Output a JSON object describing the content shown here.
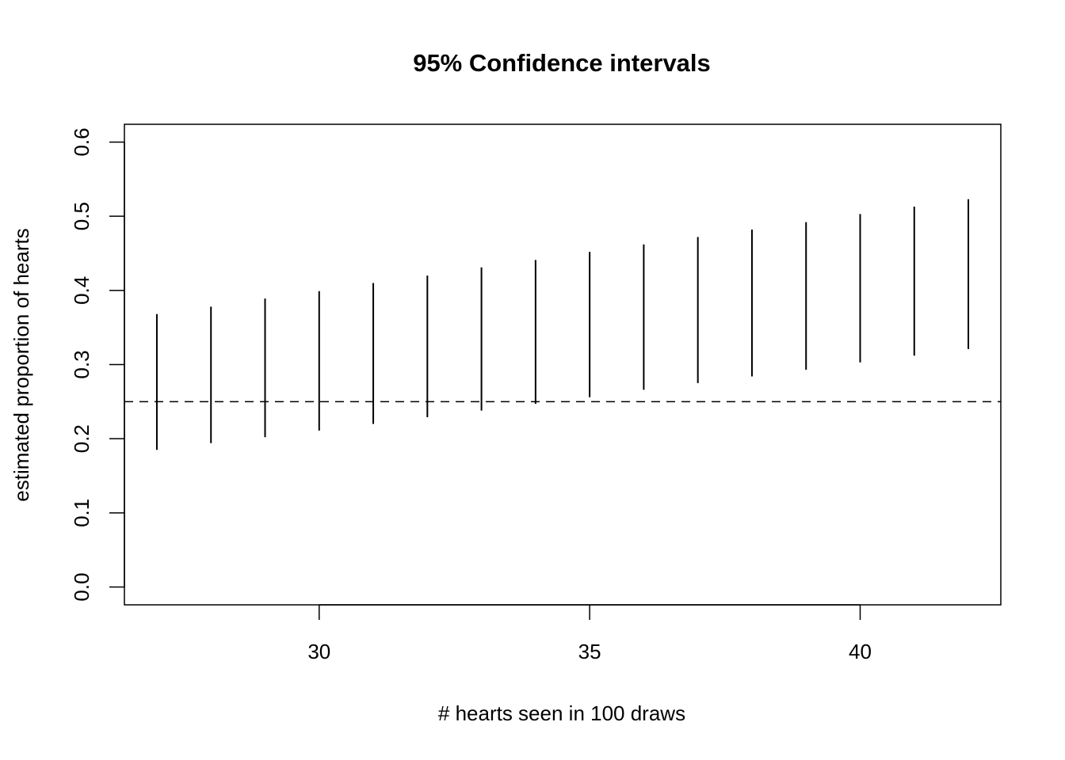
{
  "chart_data": {
    "type": "errorbar",
    "title": "95% Confidence intervals",
    "xlabel": "# hearts seen in 100 draws",
    "ylabel": "estimated proportion of hearts",
    "xlim": [
      26.4,
      42.6
    ],
    "ylim": [
      -0.024,
      0.624
    ],
    "x_ticks": [
      30,
      35,
      40
    ],
    "y_ticks": [
      0.0,
      0.1,
      0.2,
      0.3,
      0.4,
      0.5,
      0.6
    ],
    "x_tick_labels": [
      "30",
      "35",
      "40"
    ],
    "y_tick_labels": [
      "0.0",
      "0.1",
      "0.2",
      "0.3",
      "0.4",
      "0.5",
      "0.6"
    ],
    "reference_line": {
      "y": 0.25,
      "style": "dashed"
    },
    "intervals": [
      {
        "x": 27,
        "lower": 0.185,
        "upper": 0.368
      },
      {
        "x": 28,
        "lower": 0.194,
        "upper": 0.378
      },
      {
        "x": 29,
        "lower": 0.202,
        "upper": 0.389
      },
      {
        "x": 30,
        "lower": 0.211,
        "upper": 0.399
      },
      {
        "x": 31,
        "lower": 0.22,
        "upper": 0.41
      },
      {
        "x": 32,
        "lower": 0.229,
        "upper": 0.42
      },
      {
        "x": 33,
        "lower": 0.238,
        "upper": 0.431
      },
      {
        "x": 34,
        "lower": 0.247,
        "upper": 0.441
      },
      {
        "x": 35,
        "lower": 0.256,
        "upper": 0.452
      },
      {
        "x": 36,
        "lower": 0.266,
        "upper": 0.462
      },
      {
        "x": 37,
        "lower": 0.275,
        "upper": 0.472
      },
      {
        "x": 38,
        "lower": 0.284,
        "upper": 0.482
      },
      {
        "x": 39,
        "lower": 0.293,
        "upper": 0.492
      },
      {
        "x": 40,
        "lower": 0.303,
        "upper": 0.503
      },
      {
        "x": 41,
        "lower": 0.312,
        "upper": 0.513
      },
      {
        "x": 42,
        "lower": 0.321,
        "upper": 0.523
      }
    ],
    "grid": false,
    "colors": {
      "line": "#000000",
      "background": "#ffffff"
    }
  }
}
